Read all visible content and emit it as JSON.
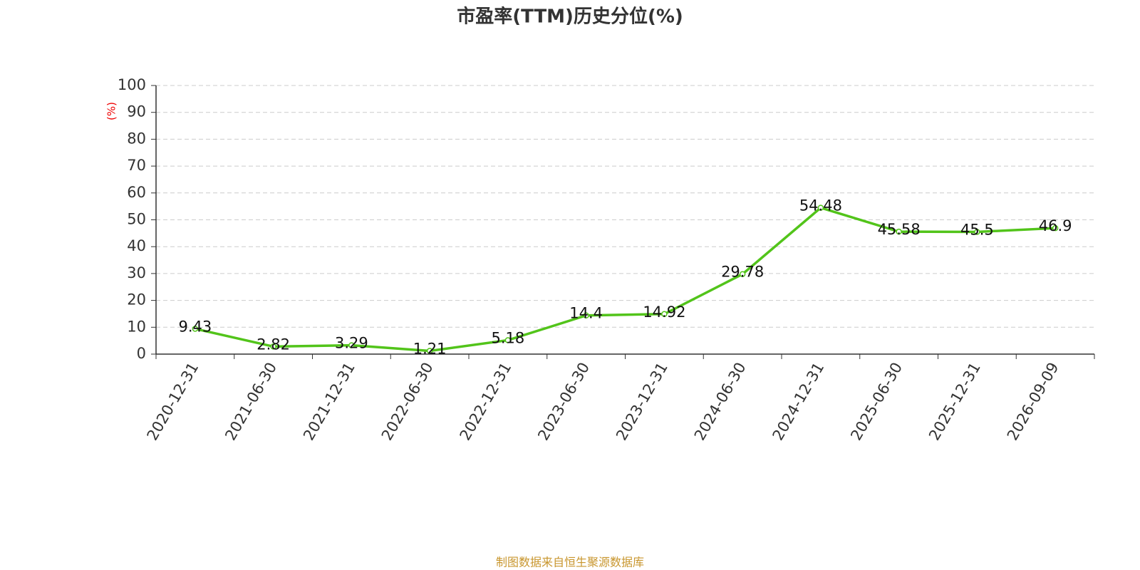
{
  "chart_data": {
    "type": "line",
    "title": "市盈率(TTM)历史分位(%)",
    "y_label": "(%)",
    "source": "制图数据来自恒生聚源数据库",
    "categories": [
      "2020-12-31",
      "2021-06-30",
      "2021-12-31",
      "2022-06-30",
      "2022-12-31",
      "2023-06-30",
      "2023-12-31",
      "2024-06-30",
      "2024-12-31",
      "2025-06-30",
      "2025-12-31",
      "2026-09-09"
    ],
    "values": [
      9.43,
      2.82,
      3.29,
      1.21,
      5.18,
      14.4,
      14.92,
      29.78,
      54.48,
      45.58,
      45.5,
      46.9
    ],
    "color": "#52c41a",
    "ylim": [
      0,
      100
    ],
    "yticks": [
      0,
      10,
      20,
      30,
      40,
      50,
      60,
      70,
      80,
      90,
      100
    ],
    "grid": true
  }
}
